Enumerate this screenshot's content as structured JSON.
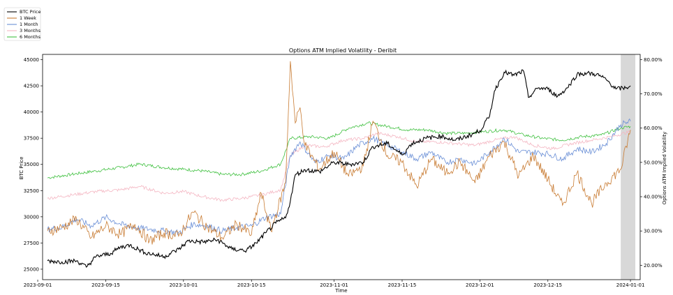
{
  "chart_data": {
    "type": "line",
    "title": "Options ATM Implied Volatility - Deribit",
    "xlabel": "Time",
    "ylabel_left": "BTC Price",
    "ylabel_right": "Options ATM Implied Volatility",
    "x_range": [
      "2023-09-02",
      "2024-01-03"
    ],
    "ylim_left": [
      24000,
      45500
    ],
    "ylim_right": [
      15.8,
      81.5
    ],
    "x_ticks": [
      "2023-09-01",
      "2023-09-15",
      "2023-10-01",
      "2023-10-15",
      "2023-11-01",
      "2023-11-15",
      "2023-12-01",
      "2023-12-15",
      "2024-01-01"
    ],
    "y_ticks_left": [
      "25000",
      "27500",
      "30000",
      "32500",
      "35000",
      "37500",
      "40000",
      "42500",
      "45000"
    ],
    "y_ticks_right": [
      "20.00%",
      "30.00%",
      "40.00%",
      "50.00%",
      "60.00%",
      "70.00%",
      "80.00%"
    ],
    "legend_position": "top-left",
    "shaded_region": [
      "2023-12-30",
      "2024-01-02"
    ],
    "grid": false,
    "series": [
      {
        "name": "BTC Price",
        "axis": "left",
        "color": "#000000",
        "points": [
          [
            "2023-09-03",
            25800
          ],
          [
            "2023-09-06",
            25700
          ],
          [
            "2023-09-09",
            25800
          ],
          [
            "2023-09-11",
            25200
          ],
          [
            "2023-09-13",
            26200
          ],
          [
            "2023-09-16",
            26500
          ],
          [
            "2023-09-18",
            27100
          ],
          [
            "2023-09-20",
            27300
          ],
          [
            "2023-09-23",
            26600
          ],
          [
            "2023-09-27",
            26200
          ],
          [
            "2023-09-30",
            26900
          ],
          [
            "2023-10-02",
            27700
          ],
          [
            "2023-10-05",
            27600
          ],
          [
            "2023-10-08",
            27800
          ],
          [
            "2023-10-11",
            26900
          ],
          [
            "2023-10-14",
            26800
          ],
          [
            "2023-10-16",
            27500
          ],
          [
            "2023-10-18",
            28500
          ],
          [
            "2023-10-20",
            29400
          ],
          [
            "2023-10-22",
            29900
          ],
          [
            "2023-10-23",
            31500
          ],
          [
            "2023-10-24",
            34000
          ],
          [
            "2023-10-26",
            34500
          ],
          [
            "2023-10-29",
            34300
          ],
          [
            "2023-11-01",
            35200
          ],
          [
            "2023-11-04",
            35000
          ],
          [
            "2023-11-07",
            35200
          ],
          [
            "2023-11-09",
            36700
          ],
          [
            "2023-11-12",
            37000
          ],
          [
            "2023-11-15",
            35900
          ],
          [
            "2023-11-17",
            37000
          ],
          [
            "2023-11-20",
            37500
          ],
          [
            "2023-11-23",
            37700
          ],
          [
            "2023-11-26",
            37300
          ],
          [
            "2023-11-29",
            37800
          ],
          [
            "2023-12-01",
            38200
          ],
          [
            "2023-12-03",
            39600
          ],
          [
            "2023-12-04",
            42000
          ],
          [
            "2023-12-06",
            43800
          ],
          [
            "2023-12-08",
            43500
          ],
          [
            "2023-12-10",
            43900
          ],
          [
            "2023-12-11",
            41400
          ],
          [
            "2023-12-13",
            42300
          ],
          [
            "2023-12-15",
            42200
          ],
          [
            "2023-12-17",
            41500
          ],
          [
            "2023-12-19",
            42300
          ],
          [
            "2023-12-21",
            43600
          ],
          [
            "2023-12-23",
            43700
          ],
          [
            "2023-12-25",
            43600
          ],
          [
            "2023-12-27",
            43100
          ],
          [
            "2023-12-29",
            42200
          ],
          [
            "2023-12-31",
            42300
          ],
          [
            "2024-01-01",
            42500
          ]
        ]
      },
      {
        "name": "1 Week",
        "axis": "right",
        "color": "#c87b32",
        "points": [
          [
            "2023-09-03",
            30.0
          ],
          [
            "2023-09-06",
            31.0
          ],
          [
            "2023-09-09",
            33.5
          ],
          [
            "2023-09-12",
            28.0
          ],
          [
            "2023-09-15",
            31.5
          ],
          [
            "2023-09-18",
            29.0
          ],
          [
            "2023-09-21",
            32.0
          ],
          [
            "2023-09-24",
            27.0
          ],
          [
            "2023-09-27",
            29.5
          ],
          [
            "2023-09-30",
            28.5
          ],
          [
            "2023-10-03",
            35.5
          ],
          [
            "2023-10-06",
            31.0
          ],
          [
            "2023-10-09",
            28.0
          ],
          [
            "2023-10-12",
            32.0
          ],
          [
            "2023-10-15",
            29.0
          ],
          [
            "2023-10-17",
            41.0
          ],
          [
            "2023-10-19",
            30.0
          ],
          [
            "2023-10-22",
            44.0
          ],
          [
            "2023-10-23",
            79.5
          ],
          [
            "2023-10-24",
            61.5
          ],
          [
            "2023-10-25",
            66.0
          ],
          [
            "2023-10-26",
            55.0
          ],
          [
            "2023-10-29",
            48.0
          ],
          [
            "2023-11-01",
            53.0
          ],
          [
            "2023-11-04",
            46.0
          ],
          [
            "2023-11-07",
            49.0
          ],
          [
            "2023-11-09",
            62.0
          ],
          [
            "2023-11-12",
            52.0
          ],
          [
            "2023-11-15",
            50.0
          ],
          [
            "2023-11-18",
            43.0
          ],
          [
            "2023-11-21",
            51.0
          ],
          [
            "2023-11-24",
            47.0
          ],
          [
            "2023-11-27",
            50.0
          ],
          [
            "2023-11-30",
            44.0
          ],
          [
            "2023-12-03",
            52.0
          ],
          [
            "2023-12-06",
            56.0
          ],
          [
            "2023-12-09",
            46.0
          ],
          [
            "2023-12-12",
            52.0
          ],
          [
            "2023-12-15",
            45.0
          ],
          [
            "2023-12-18",
            37.5
          ],
          [
            "2023-12-21",
            47.0
          ],
          [
            "2023-12-24",
            38.0
          ],
          [
            "2023-12-27",
            44.0
          ],
          [
            "2023-12-30",
            48.0
          ],
          [
            "2024-01-01",
            59.5
          ]
        ]
      },
      {
        "name": "1 Month",
        "axis": "right",
        "color": "#6a8fd6",
        "points": [
          [
            "2023-09-03",
            30.5
          ],
          [
            "2023-09-06",
            31.0
          ],
          [
            "2023-09-09",
            33.5
          ],
          [
            "2023-09-12",
            31.5
          ],
          [
            "2023-09-15",
            34.0
          ],
          [
            "2023-09-18",
            32.0
          ],
          [
            "2023-09-21",
            31.0
          ],
          [
            "2023-09-24",
            30.5
          ],
          [
            "2023-09-27",
            30.0
          ],
          [
            "2023-09-30",
            29.5
          ],
          [
            "2023-10-03",
            32.0
          ],
          [
            "2023-10-06",
            31.5
          ],
          [
            "2023-10-09",
            30.0
          ],
          [
            "2023-10-12",
            31.0
          ],
          [
            "2023-10-15",
            31.5
          ],
          [
            "2023-10-18",
            34.0
          ],
          [
            "2023-10-21",
            35.0
          ],
          [
            "2023-10-23",
            52.0
          ],
          [
            "2023-10-25",
            56.0
          ],
          [
            "2023-10-28",
            50.0
          ],
          [
            "2023-10-31",
            52.0
          ],
          [
            "2023-11-03",
            51.0
          ],
          [
            "2023-11-06",
            55.0
          ],
          [
            "2023-11-09",
            57.0
          ],
          [
            "2023-11-12",
            55.0
          ],
          [
            "2023-11-15",
            53.0
          ],
          [
            "2023-11-18",
            51.0
          ],
          [
            "2023-11-21",
            53.0
          ],
          [
            "2023-11-24",
            50.0
          ],
          [
            "2023-11-27",
            51.0
          ],
          [
            "2023-11-30",
            49.5
          ],
          [
            "2023-12-03",
            53.0
          ],
          [
            "2023-12-06",
            57.0
          ],
          [
            "2023-12-09",
            53.0
          ],
          [
            "2023-12-12",
            53.0
          ],
          [
            "2023-12-15",
            52.5
          ],
          [
            "2023-12-18",
            51.0
          ],
          [
            "2023-12-21",
            54.0
          ],
          [
            "2023-12-24",
            53.0
          ],
          [
            "2023-12-27",
            55.5
          ],
          [
            "2023-12-30",
            61.0
          ],
          [
            "2024-01-01",
            62.0
          ]
        ]
      },
      {
        "name": "3 Months",
        "axis": "right",
        "color": "#f4b6c2",
        "points": [
          [
            "2023-09-03",
            39.5
          ],
          [
            "2023-09-08",
            40.5
          ],
          [
            "2023-09-13",
            41.5
          ],
          [
            "2023-09-18",
            42.0
          ],
          [
            "2023-09-22",
            43.0
          ],
          [
            "2023-09-27",
            41.0
          ],
          [
            "2023-10-01",
            41.5
          ],
          [
            "2023-10-05",
            40.0
          ],
          [
            "2023-10-09",
            39.0
          ],
          [
            "2023-10-13",
            39.5
          ],
          [
            "2023-10-17",
            40.5
          ],
          [
            "2023-10-21",
            42.0
          ],
          [
            "2023-10-23",
            52.0
          ],
          [
            "2023-10-26",
            55.0
          ],
          [
            "2023-10-30",
            54.5
          ],
          [
            "2023-11-03",
            56.5
          ],
          [
            "2023-11-07",
            57.0
          ],
          [
            "2023-11-10",
            58.5
          ],
          [
            "2023-11-14",
            57.5
          ],
          [
            "2023-11-18",
            56.0
          ],
          [
            "2023-11-22",
            56.0
          ],
          [
            "2023-11-26",
            55.5
          ],
          [
            "2023-11-30",
            55.0
          ],
          [
            "2023-12-04",
            56.5
          ],
          [
            "2023-12-08",
            57.5
          ],
          [
            "2023-12-12",
            55.0
          ],
          [
            "2023-12-16",
            54.0
          ],
          [
            "2023-12-20",
            55.5
          ],
          [
            "2023-12-24",
            56.5
          ],
          [
            "2023-12-28",
            57.5
          ],
          [
            "2024-01-01",
            59.0
          ]
        ]
      },
      {
        "name": "6 Months",
        "axis": "right",
        "color": "#3fc03f",
        "points": [
          [
            "2023-09-03",
            45.5
          ],
          [
            "2023-09-08",
            46.5
          ],
          [
            "2023-09-13",
            47.5
          ],
          [
            "2023-09-18",
            48.5
          ],
          [
            "2023-09-22",
            49.5
          ],
          [
            "2023-09-27",
            48.5
          ],
          [
            "2023-10-01",
            48.0
          ],
          [
            "2023-10-05",
            47.5
          ],
          [
            "2023-10-09",
            46.5
          ],
          [
            "2023-10-13",
            46.5
          ],
          [
            "2023-10-17",
            47.5
          ],
          [
            "2023-10-21",
            49.5
          ],
          [
            "2023-10-23",
            57.0
          ],
          [
            "2023-10-27",
            57.5
          ],
          [
            "2023-10-31",
            57.0
          ],
          [
            "2023-11-04",
            60.0
          ],
          [
            "2023-11-08",
            61.5
          ],
          [
            "2023-11-12",
            60.5
          ],
          [
            "2023-11-16",
            59.5
          ],
          [
            "2023-11-20",
            59.5
          ],
          [
            "2023-11-24",
            58.5
          ],
          [
            "2023-11-28",
            58.5
          ],
          [
            "2023-12-02",
            59.0
          ],
          [
            "2023-12-06",
            59.5
          ],
          [
            "2023-12-10",
            58.0
          ],
          [
            "2023-12-14",
            57.0
          ],
          [
            "2023-12-18",
            56.5
          ],
          [
            "2023-12-22",
            57.5
          ],
          [
            "2023-12-26",
            58.0
          ],
          [
            "2023-12-30",
            60.0
          ],
          [
            "2024-01-01",
            60.5
          ]
        ]
      }
    ]
  }
}
